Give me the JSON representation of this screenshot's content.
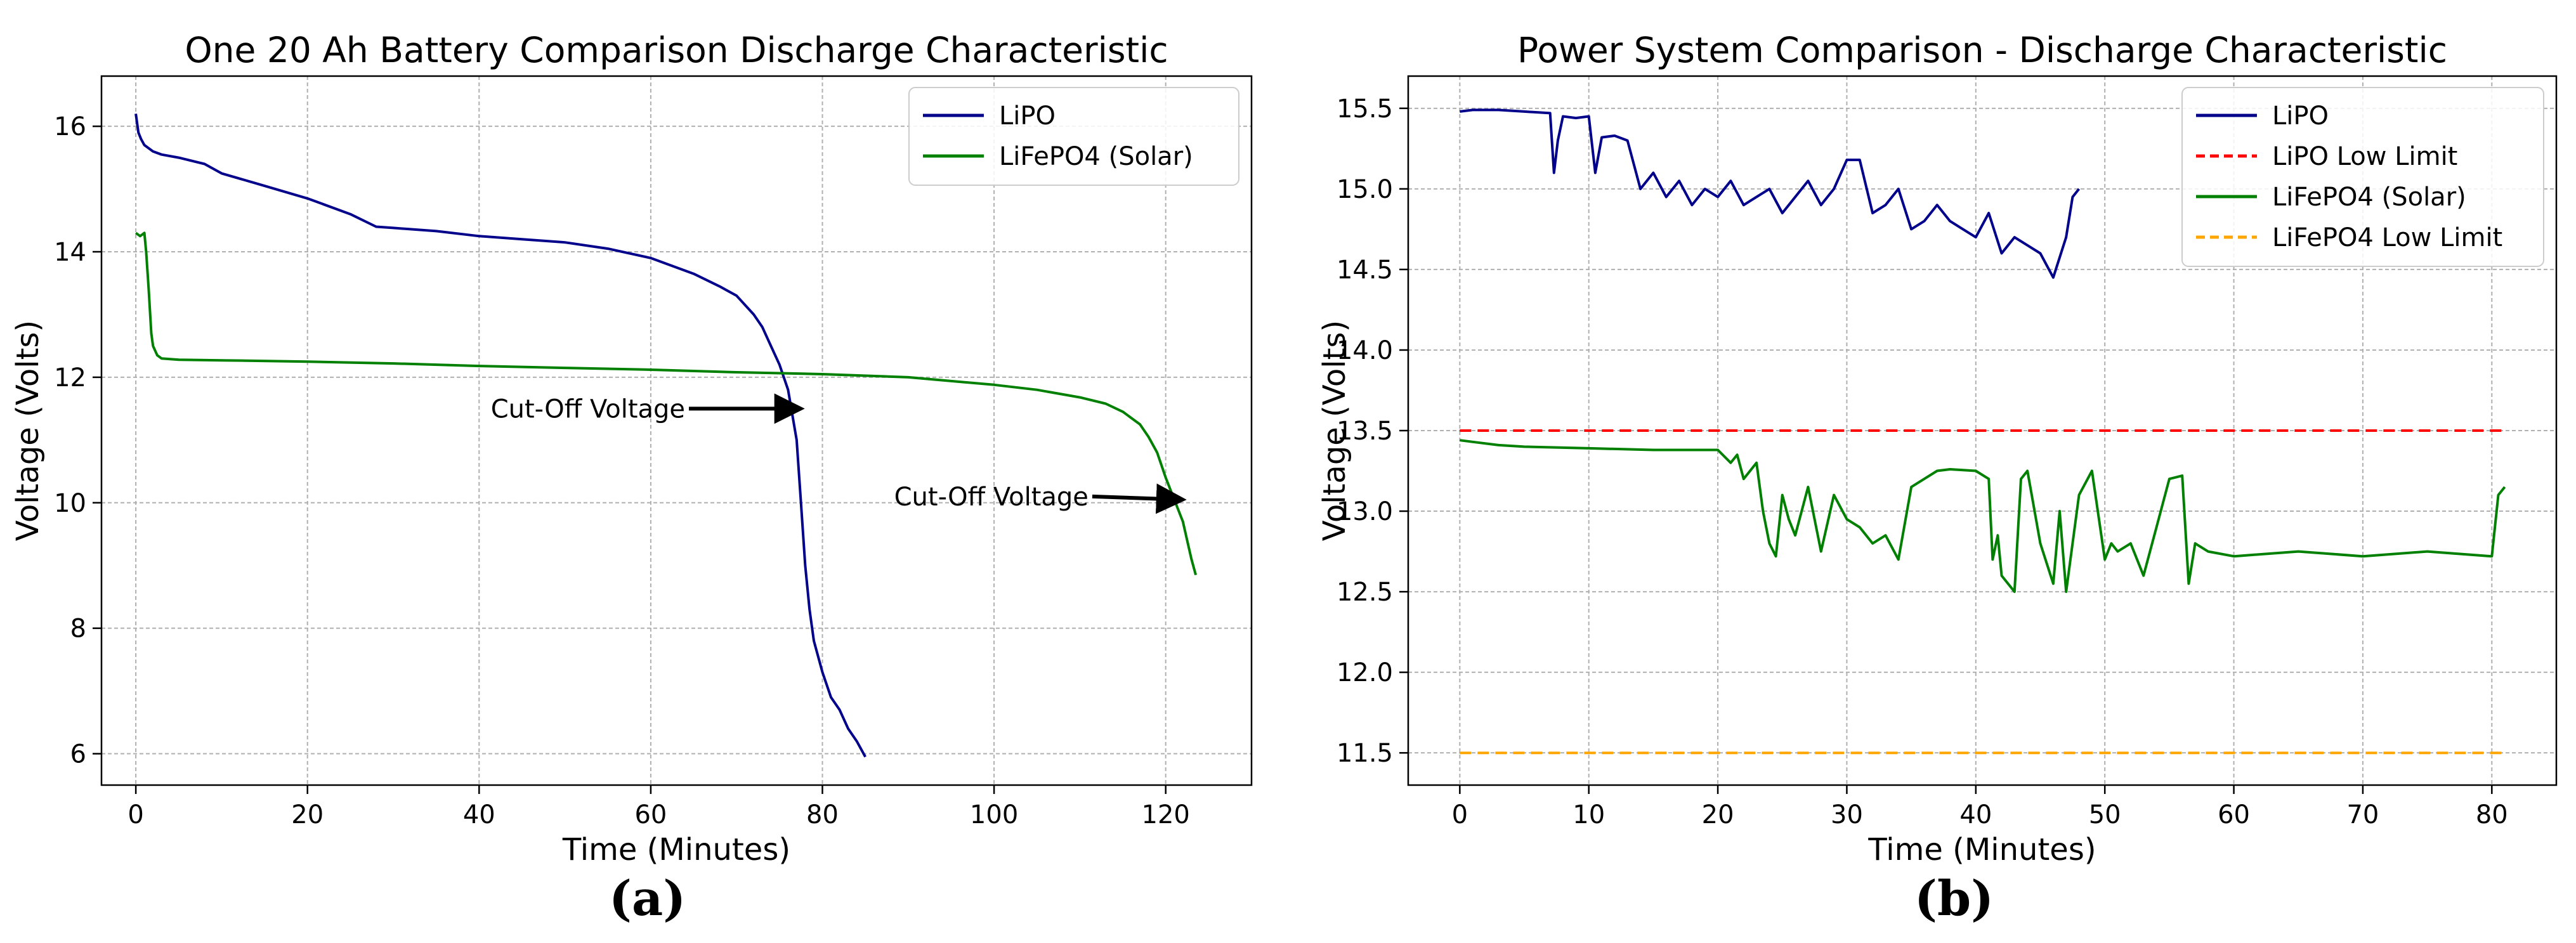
{
  "colors": {
    "lipo": "#00008b",
    "lifepo4": "#008000",
    "lipo_limit": "#ff0000",
    "lifepo4_limit": "#ffa500"
  },
  "chart_data": [
    {
      "type": "line",
      "panel": "(a)",
      "title": "One 20 Ah Battery Comparison Discharge Characteristic",
      "xlabel": "Time (Minutes)",
      "ylabel": "Voltage (Volts)",
      "xlim": [
        -4,
        130
      ],
      "ylim": [
        5.5,
        16.8
      ],
      "xticks": [
        0,
        20,
        40,
        60,
        80,
        100,
        120
      ],
      "yticks": [
        6,
        8,
        10,
        12,
        14,
        16
      ],
      "grid": true,
      "legend": "top-right",
      "series": [
        {
          "name": "LiPO",
          "color": "#00008b",
          "x": [
            0,
            0.3,
            0.6,
            1,
            2,
            3,
            5,
            8,
            10,
            15,
            20,
            25,
            28,
            30,
            35,
            40,
            45,
            50,
            55,
            60,
            65,
            68,
            70,
            72,
            73,
            74,
            75,
            76,
            77,
            77.5,
            78,
            78.5,
            79,
            80,
            81,
            82,
            83,
            84,
            85
          ],
          "y": [
            16.2,
            15.9,
            15.8,
            15.7,
            15.6,
            15.55,
            15.5,
            15.4,
            15.25,
            15.05,
            14.85,
            14.6,
            14.4,
            14.38,
            14.33,
            14.25,
            14.2,
            14.15,
            14.05,
            13.9,
            13.65,
            13.45,
            13.3,
            13.0,
            12.8,
            12.5,
            12.2,
            11.8,
            11.0,
            10.0,
            9.0,
            8.3,
            7.8,
            7.3,
            6.9,
            6.7,
            6.4,
            6.2,
            5.95
          ]
        },
        {
          "name": "LiFePO4 (Solar)",
          "color": "#008000",
          "x": [
            0,
            0.5,
            1,
            1.2,
            1.5,
            1.8,
            2,
            2.5,
            3,
            5,
            10,
            20,
            30,
            40,
            50,
            60,
            70,
            80,
            90,
            100,
            105,
            110,
            113,
            115,
            117,
            118,
            119,
            120,
            121,
            122,
            122.5,
            123,
            123.5
          ],
          "y": [
            14.3,
            14.25,
            14.3,
            14.0,
            13.4,
            12.7,
            12.5,
            12.35,
            12.3,
            12.28,
            12.27,
            12.25,
            12.22,
            12.18,
            12.15,
            12.12,
            12.08,
            12.05,
            12.0,
            11.88,
            11.8,
            11.68,
            11.58,
            11.45,
            11.25,
            11.05,
            10.8,
            10.4,
            10.05,
            9.7,
            9.4,
            9.1,
            8.85
          ]
        }
      ],
      "annotations": [
        {
          "text": "Cut-Off Voltage",
          "xytext": [
            64,
            11.5
          ],
          "xy": [
            77.5,
            11.5
          ]
        },
        {
          "text": "Cut-Off Voltage",
          "xytext": [
            111,
            10.1
          ],
          "xy": [
            122,
            10.05
          ]
        }
      ]
    },
    {
      "type": "line",
      "panel": "(b)",
      "title": "Power System Comparison - Discharge Characteristic",
      "xlabel": "Time (Minutes)",
      "ylabel": "Voltage (Volts)",
      "xlim": [
        -4,
        85
      ],
      "ylim": [
        11.3,
        15.7
      ],
      "xticks": [
        0,
        10,
        20,
        30,
        40,
        50,
        60,
        70,
        80
      ],
      "yticks": [
        11.5,
        12.0,
        12.5,
        13.0,
        13.5,
        14.0,
        14.5,
        15.0,
        15.5
      ],
      "grid": true,
      "legend": "top-right",
      "series": [
        {
          "name": "LiPO",
          "color": "#00008b",
          "x": [
            0,
            1,
            3,
            5,
            7,
            7.3,
            7.6,
            8,
            9,
            10,
            10.5,
            11,
            12,
            13,
            14,
            15,
            16,
            17,
            18,
            19,
            20,
            21,
            22,
            23,
            24,
            25,
            26,
            27,
            28,
            29,
            30,
            31,
            32,
            33,
            34,
            35,
            36,
            37,
            38,
            39,
            40,
            41,
            42,
            43,
            44,
            45,
            46,
            47,
            47.5,
            48
          ],
          "y": [
            15.48,
            15.49,
            15.49,
            15.48,
            15.47,
            15.1,
            15.3,
            15.45,
            15.44,
            15.45,
            15.1,
            15.32,
            15.33,
            15.3,
            15.0,
            15.1,
            14.95,
            15.05,
            14.9,
            15.0,
            14.95,
            15.05,
            14.9,
            14.95,
            15.0,
            14.85,
            14.95,
            15.05,
            14.9,
            15.0,
            15.18,
            15.18,
            14.85,
            14.9,
            15.0,
            14.75,
            14.8,
            14.9,
            14.8,
            14.75,
            14.7,
            14.85,
            14.6,
            14.7,
            14.65,
            14.6,
            14.45,
            14.7,
            14.95,
            15.0
          ]
        },
        {
          "name": "LiPO Low Limit",
          "color": "#ff0000",
          "dashed": true,
          "x": [
            0,
            81
          ],
          "y": [
            13.5,
            13.5
          ]
        },
        {
          "name": "LiFePO4 (Solar)",
          "color": "#008000",
          "x": [
            0,
            1,
            3,
            5,
            10,
            15,
            20,
            21,
            21.5,
            22,
            23,
            23.5,
            24,
            24.5,
            25,
            25.5,
            26,
            27,
            28,
            29,
            30,
            31,
            32,
            33,
            34,
            35,
            36,
            37,
            38,
            40,
            41,
            41.3,
            41.7,
            42,
            43,
            43.5,
            44,
            45,
            46,
            46.5,
            47,
            48,
            49,
            50,
            50.5,
            51,
            52,
            53,
            54,
            55,
            56,
            56.5,
            57,
            58,
            60,
            65,
            70,
            75,
            80,
            80.5,
            81
          ],
          "y": [
            13.44,
            13.43,
            13.41,
            13.4,
            13.39,
            13.38,
            13.38,
            13.3,
            13.35,
            13.2,
            13.3,
            13.0,
            12.8,
            12.72,
            13.1,
            12.95,
            12.85,
            13.15,
            12.75,
            13.1,
            12.95,
            12.9,
            12.8,
            12.85,
            12.7,
            13.15,
            13.2,
            13.25,
            13.26,
            13.25,
            13.2,
            12.7,
            12.85,
            12.6,
            12.5,
            13.2,
            13.25,
            12.8,
            12.55,
            13.0,
            12.5,
            13.1,
            13.25,
            12.7,
            12.8,
            12.75,
            12.8,
            12.6,
            12.9,
            13.2,
            13.22,
            12.55,
            12.8,
            12.75,
            12.72,
            12.75,
            12.72,
            12.75,
            12.72,
            13.1,
            13.15
          ]
        },
        {
          "name": "LiFePO4 Low Limit",
          "color": "#ffa500",
          "dashed": true,
          "x": [
            0,
            81
          ],
          "y": [
            11.5,
            11.5
          ]
        }
      ]
    }
  ]
}
